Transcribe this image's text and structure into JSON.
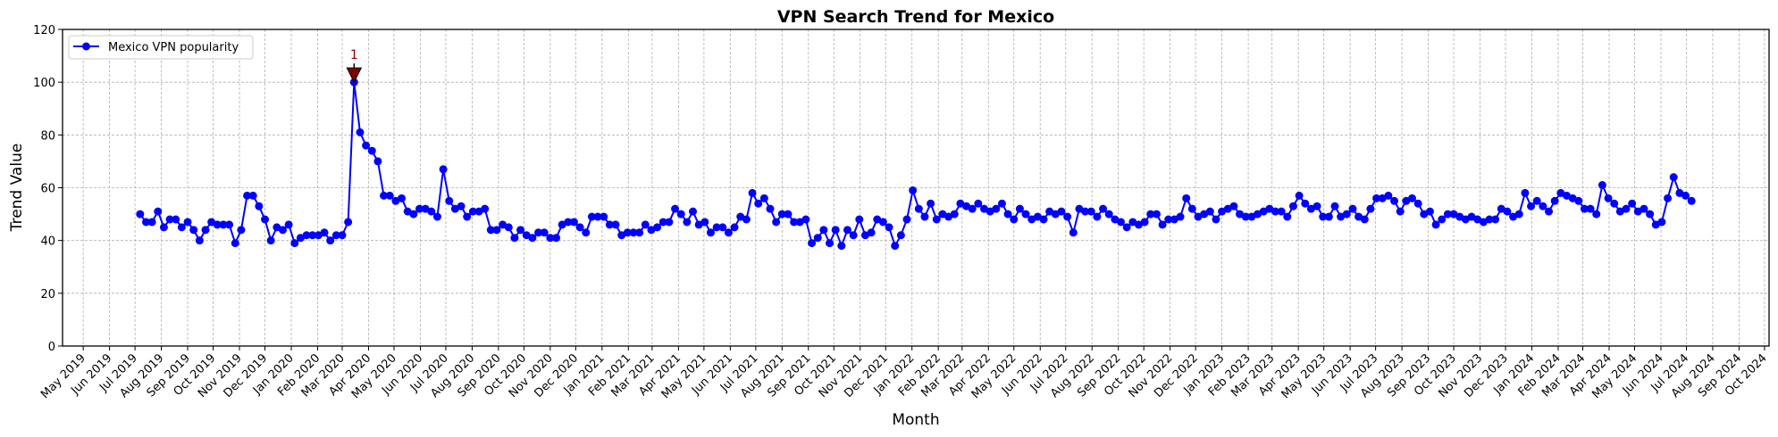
{
  "chart_data": {
    "type": "line",
    "title": "VPN Search Trend for Mexico",
    "xlabel": "Month",
    "ylabel": "Trend Value",
    "ylim": [
      0,
      120
    ],
    "yticks": [
      0,
      20,
      40,
      60,
      80,
      100,
      120
    ],
    "grid": true,
    "legend_position": "top-left",
    "colors": {
      "series": "#0000ff",
      "annotation_marker": "#800000",
      "annotation_text": "#8b0000"
    },
    "xticks": [
      "May 2019",
      "Jun 2019",
      "Jul 2019",
      "Aug 2019",
      "Sep 2019",
      "Oct 2019",
      "Nov 2019",
      "Dec 2019",
      "Jan 2020",
      "Feb 2020",
      "Mar 2020",
      "Apr 2020",
      "May 2020",
      "Jun 2020",
      "Jul 2020",
      "Aug 2020",
      "Sep 2020",
      "Oct 2020",
      "Nov 2020",
      "Dec 2020",
      "Jan 2021",
      "Feb 2021",
      "Mar 2021",
      "Apr 2021",
      "May 2021",
      "Jun 2021",
      "Jul 2021",
      "Aug 2021",
      "Sep 2021",
      "Oct 2021",
      "Nov 2021",
      "Dec 2021",
      "Jan 2022",
      "Feb 2022",
      "Mar 2022",
      "Apr 2022",
      "May 2022",
      "Jun 2022",
      "Jul 2022",
      "Aug 2022",
      "Sep 2022",
      "Oct 2022",
      "Nov 2022",
      "Dec 2022",
      "Jan 2023",
      "Feb 2023",
      "Mar 2023",
      "Apr 2023",
      "May 2023",
      "Jun 2023",
      "Jul 2023",
      "Aug 2023",
      "Sep 2023",
      "Oct 2023",
      "Nov 2023",
      "Dec 2023",
      "Jan 2024",
      "Feb 2024",
      "Mar 2024",
      "Apr 2024",
      "May 2024",
      "Jun 2024",
      "Jul 2024",
      "Aug 2024",
      "Sep 2024",
      "Oct 2024"
    ],
    "x": [
      "2019-07-07",
      "2019-07-14",
      "2019-07-21",
      "2019-07-28",
      "2019-08-04",
      "2019-08-11",
      "2019-08-18",
      "2019-08-25",
      "2019-09-01",
      "2019-09-08",
      "2019-09-15",
      "2019-09-22",
      "2019-09-29",
      "2019-10-06",
      "2019-10-13",
      "2019-10-20",
      "2019-10-27",
      "2019-11-03",
      "2019-11-10",
      "2019-11-17",
      "2019-11-24",
      "2019-12-01",
      "2019-12-08",
      "2019-12-15",
      "2019-12-22",
      "2019-12-29",
      "2020-01-05",
      "2020-01-12",
      "2020-01-19",
      "2020-01-26",
      "2020-02-02",
      "2020-02-09",
      "2020-02-16",
      "2020-02-23",
      "2020-03-01",
      "2020-03-08",
      "2020-03-15",
      "2020-03-22",
      "2020-03-29",
      "2020-04-05",
      "2020-04-12",
      "2020-04-19",
      "2020-04-26",
      "2020-05-03",
      "2020-05-10",
      "2020-05-17",
      "2020-05-24",
      "2020-05-31",
      "2020-06-07",
      "2020-06-14",
      "2020-06-21",
      "2020-06-28",
      "2020-07-05",
      "2020-07-12",
      "2020-07-19",
      "2020-07-26",
      "2020-08-02",
      "2020-08-09",
      "2020-08-16",
      "2020-08-23",
      "2020-08-30",
      "2020-09-06",
      "2020-09-13",
      "2020-09-20",
      "2020-09-27",
      "2020-10-04",
      "2020-10-11",
      "2020-10-18",
      "2020-10-25",
      "2020-11-01",
      "2020-11-08",
      "2020-11-15",
      "2020-11-22",
      "2020-11-29",
      "2020-12-06",
      "2020-12-13",
      "2020-12-20",
      "2020-12-27",
      "2021-01-03",
      "2021-01-10",
      "2021-01-17",
      "2021-01-24",
      "2021-01-31",
      "2021-02-07",
      "2021-02-14",
      "2021-02-21",
      "2021-02-28",
      "2021-03-07",
      "2021-03-14",
      "2021-03-21",
      "2021-03-28",
      "2021-04-04",
      "2021-04-11",
      "2021-04-18",
      "2021-04-25",
      "2021-05-02",
      "2021-05-09",
      "2021-05-16",
      "2021-05-23",
      "2021-05-30",
      "2021-06-06",
      "2021-06-13",
      "2021-06-20",
      "2021-06-27",
      "2021-07-04",
      "2021-07-11",
      "2021-07-18",
      "2021-07-25",
      "2021-08-01",
      "2021-08-08",
      "2021-08-15",
      "2021-08-22",
      "2021-08-29",
      "2021-09-05",
      "2021-09-12",
      "2021-09-19",
      "2021-09-26",
      "2021-10-03",
      "2021-10-10",
      "2021-10-17",
      "2021-10-24",
      "2021-10-31",
      "2021-11-07",
      "2021-11-14",
      "2021-11-21",
      "2021-11-28",
      "2021-12-05",
      "2021-12-12",
      "2021-12-19",
      "2021-12-26",
      "2022-01-02",
      "2022-01-09",
      "2022-01-16",
      "2022-01-23",
      "2022-01-30",
      "2022-02-06",
      "2022-02-13",
      "2022-02-20",
      "2022-02-27",
      "2022-03-06",
      "2022-03-13",
      "2022-03-20",
      "2022-03-27",
      "2022-04-03",
      "2022-04-10",
      "2022-04-17",
      "2022-04-24",
      "2022-05-01",
      "2022-05-08",
      "2022-05-15",
      "2022-05-22",
      "2022-05-29",
      "2022-06-05",
      "2022-06-12",
      "2022-06-19",
      "2022-06-26",
      "2022-07-03",
      "2022-07-10",
      "2022-07-17",
      "2022-07-24",
      "2022-07-31",
      "2022-08-07",
      "2022-08-14",
      "2022-08-21",
      "2022-08-28",
      "2022-09-04",
      "2022-09-11",
      "2022-09-18",
      "2022-09-25",
      "2022-10-02",
      "2022-10-09",
      "2022-10-16",
      "2022-10-23",
      "2022-10-30",
      "2022-11-06",
      "2022-11-13",
      "2022-11-20",
      "2022-11-27",
      "2022-12-04",
      "2022-12-11",
      "2022-12-18",
      "2022-12-25",
      "2023-01-01",
      "2023-01-08",
      "2023-01-15",
      "2023-01-22",
      "2023-01-29",
      "2023-02-05",
      "2023-02-12",
      "2023-02-19",
      "2023-02-26",
      "2023-03-05",
      "2023-03-12",
      "2023-03-19",
      "2023-03-26",
      "2023-04-02",
      "2023-04-09",
      "2023-04-16",
      "2023-04-23",
      "2023-04-30",
      "2023-05-07",
      "2023-05-14",
      "2023-05-21",
      "2023-05-28",
      "2023-06-04",
      "2023-06-11",
      "2023-06-18",
      "2023-06-25",
      "2023-07-02",
      "2023-07-09",
      "2023-07-16",
      "2023-07-23",
      "2023-07-30",
      "2023-08-06",
      "2023-08-13",
      "2023-08-20",
      "2023-08-27",
      "2023-09-03",
      "2023-09-10",
      "2023-09-17",
      "2023-09-24",
      "2023-10-01",
      "2023-10-08",
      "2023-10-15",
      "2023-10-22",
      "2023-10-29",
      "2023-11-05",
      "2023-11-12",
      "2023-11-19",
      "2023-11-26",
      "2023-12-03",
      "2023-12-10",
      "2023-12-17",
      "2023-12-24",
      "2023-12-31",
      "2024-01-07",
      "2024-01-14",
      "2024-01-21",
      "2024-01-28",
      "2024-02-04",
      "2024-02-11",
      "2024-02-18",
      "2024-02-25",
      "2024-03-03",
      "2024-03-10",
      "2024-03-17",
      "2024-03-24",
      "2024-03-31",
      "2024-04-07",
      "2024-04-14",
      "2024-04-21",
      "2024-04-28",
      "2024-05-05",
      "2024-05-12",
      "2024-05-19",
      "2024-05-26",
      "2024-06-02",
      "2024-06-09",
      "2024-06-16",
      "2024-06-23",
      "2024-06-30",
      "2024-07-07"
    ],
    "series": [
      {
        "name": "Mexico VPN popularity",
        "values": [
          50,
          47,
          47,
          51,
          45,
          48,
          48,
          45,
          47,
          44,
          40,
          44,
          47,
          46,
          46,
          46,
          39,
          44,
          57,
          57,
          53,
          48,
          40,
          45,
          44,
          46,
          39,
          41,
          42,
          42,
          42,
          43,
          40,
          42,
          42,
          47,
          100,
          81,
          76,
          74,
          70,
          57,
          57,
          55,
          56,
          51,
          50,
          52,
          52,
          51,
          49,
          67,
          55,
          52,
          53,
          49,
          51,
          51,
          52,
          44,
          44,
          46,
          45,
          41,
          44,
          42,
          41,
          43,
          43,
          41,
          41,
          46,
          47,
          47,
          45,
          43,
          49,
          49,
          49,
          46,
          46,
          42,
          43,
          43,
          43,
          46,
          44,
          45,
          47,
          47,
          52,
          50,
          47,
          51,
          46,
          47,
          43,
          45,
          45,
          43,
          45,
          49,
          48,
          58,
          54,
          56,
          52,
          47,
          50,
          50,
          47,
          47,
          48,
          39,
          41,
          44,
          39,
          44,
          38,
          44,
          42,
          48,
          42,
          43,
          48,
          47,
          45,
          38,
          42,
          48,
          59,
          52,
          49,
          54,
          48,
          50,
          49,
          50,
          54,
          53,
          52,
          54,
          52,
          51,
          52,
          54,
          50,
          48,
          52,
          50,
          48,
          49,
          48,
          51,
          50,
          51,
          49,
          43,
          52,
          51,
          51,
          49,
          52,
          50,
          48,
          47,
          45,
          47,
          46,
          47,
          50,
          50,
          46,
          48,
          48,
          49,
          56,
          52,
          49,
          50,
          51,
          48,
          51,
          52,
          53,
          50,
          49,
          49,
          50,
          51,
          52,
          51,
          51,
          49,
          53,
          57,
          54,
          52,
          53,
          49,
          49,
          53,
          49,
          50,
          52,
          49,
          48,
          52,
          56,
          56,
          57,
          55,
          51,
          55,
          56,
          54,
          50,
          51,
          46,
          48,
          50,
          50,
          49,
          48,
          49,
          48,
          47,
          48,
          48,
          52,
          51,
          49,
          50,
          58,
          53,
          55,
          53,
          51,
          55,
          58,
          57,
          56,
          55,
          52,
          52,
          50,
          61,
          56,
          54,
          51,
          52,
          54,
          51,
          52,
          50,
          46,
          47,
          56,
          64,
          58,
          57,
          55
        ]
      }
    ],
    "annotations": [
      {
        "text": "1",
        "x": "2020-03-15",
        "y": 100
      }
    ]
  }
}
